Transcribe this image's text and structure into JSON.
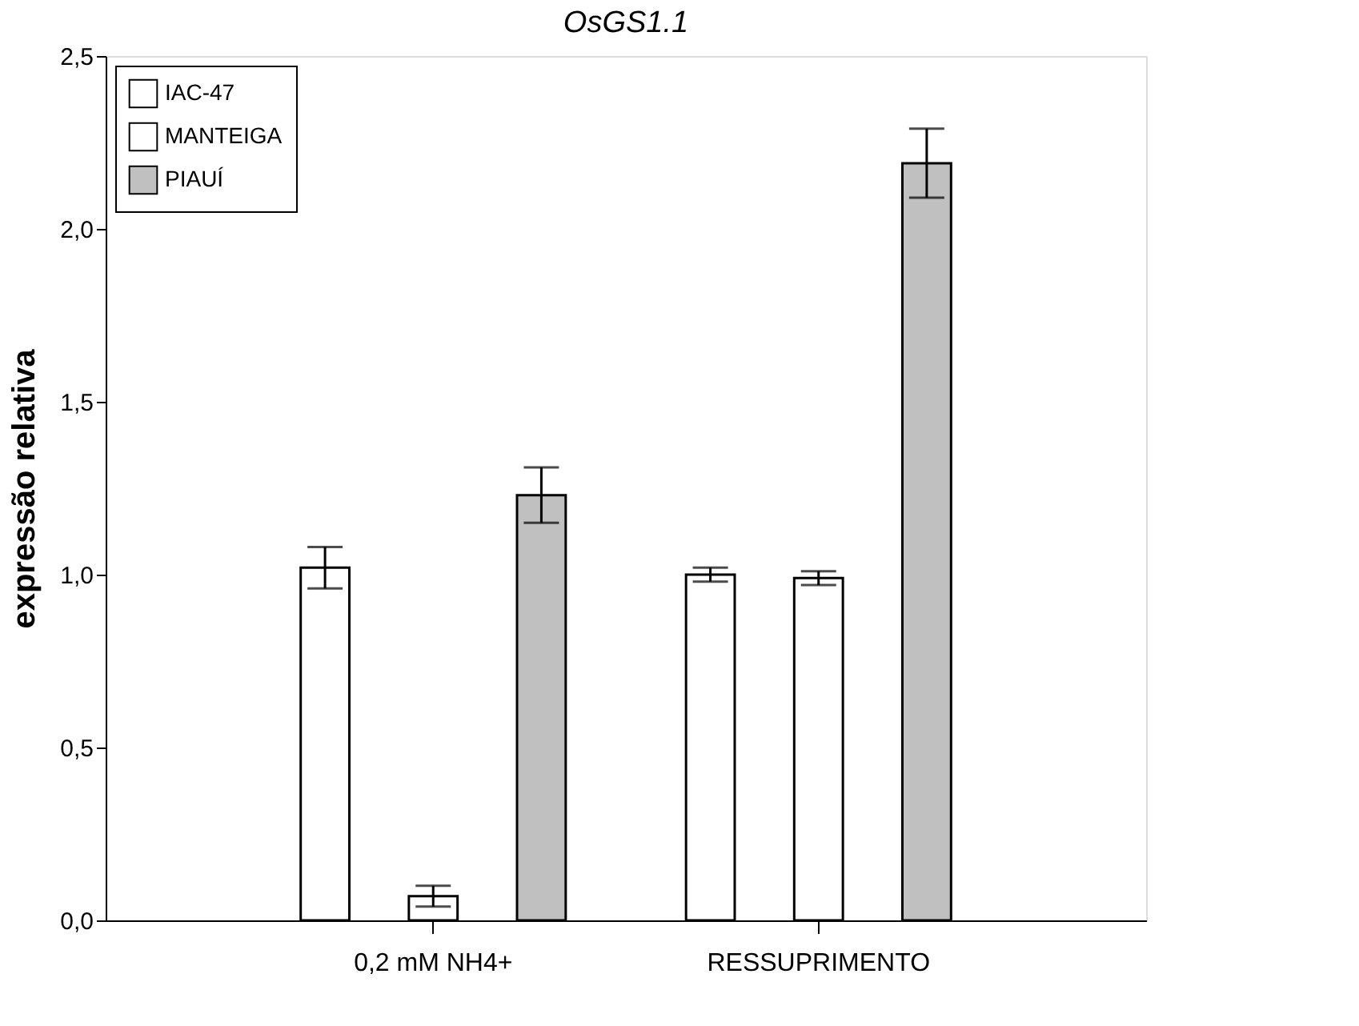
{
  "chart_data": {
    "type": "bar",
    "title": "OsGS1.1",
    "ylabel": "expressão relativa",
    "categories": [
      "0,2 mM NH4+",
      "RESSUPRIMENTO"
    ],
    "series": [
      {
        "name": "IAC-47",
        "color": "#ffffff",
        "values": [
          1.02,
          1.0
        ],
        "errors": [
          0.06,
          0.02
        ]
      },
      {
        "name": "MANTEIGA",
        "color": "#ffffff",
        "values": [
          0.07,
          0.99
        ],
        "errors": [
          0.03,
          0.02
        ]
      },
      {
        "name": "PIAUÍ",
        "color": "#c0c0c0",
        "values": [
          1.23,
          2.19
        ],
        "errors": [
          0.08,
          0.1
        ]
      }
    ],
    "ylim": [
      0,
      2.5
    ],
    "yticks": [
      {
        "value": 0,
        "label": "0,0"
      },
      {
        "value": 0.5,
        "label": "0,5"
      },
      {
        "value": 1,
        "label": "1,0"
      },
      {
        "value": 1.5,
        "label": "1,5"
      },
      {
        "value": 2,
        "label": "2,0"
      },
      {
        "value": 2.5,
        "label": "2,5"
      }
    ],
    "grid": false,
    "legend": "top left"
  }
}
